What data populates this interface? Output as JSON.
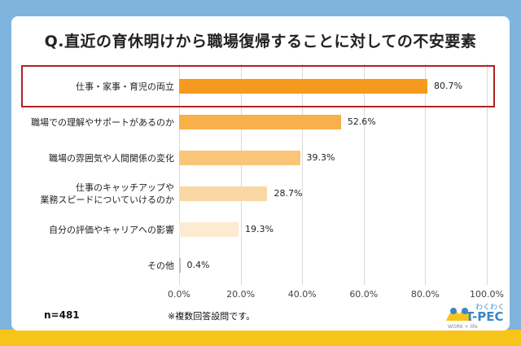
{
  "title": "Q.直近の育休明けから職場復帰することに対しての不安要素",
  "n_label": "n=481",
  "note": "※複数回答設問です。",
  "logo": {
    "top_text": "わくわく",
    "main_text": "T-PEC",
    "sub_text": "WORK + life"
  },
  "colors": {
    "background": "#7fb4df",
    "bottom_band": "#f7c51a",
    "highlight_border": "#b22222"
  },
  "chart_data": {
    "type": "bar",
    "orientation": "horizontal",
    "categories": [
      "仕事・家事・育児の両立",
      "職場での理解やサポートがあるのか",
      "職場の雰囲気や人間関係の変化",
      "仕事のキャッチアップや\n業務スピードについていけるのか",
      "自分の評価やキャリアへの影響",
      "その他"
    ],
    "values": [
      80.7,
      52.6,
      39.3,
      28.7,
      19.3,
      0.4
    ],
    "value_labels": [
      "80.7%",
      "52.6%",
      "39.3%",
      "28.7%",
      "19.3%",
      "0.4%"
    ],
    "bar_colors": [
      "#f59a1e",
      "#f7b04a",
      "#f9c577",
      "#fbd7a4",
      "#fdebd1",
      "#fdebd1"
    ],
    "xlim": [
      0,
      100
    ],
    "x_ticks": [
      0,
      20,
      40,
      60,
      80,
      100
    ],
    "x_tick_labels": [
      "0.0%",
      "20.0%",
      "40.0%",
      "60.0%",
      "80.0%",
      "100.0%"
    ],
    "grid": true,
    "highlighted_category_index": 0
  }
}
